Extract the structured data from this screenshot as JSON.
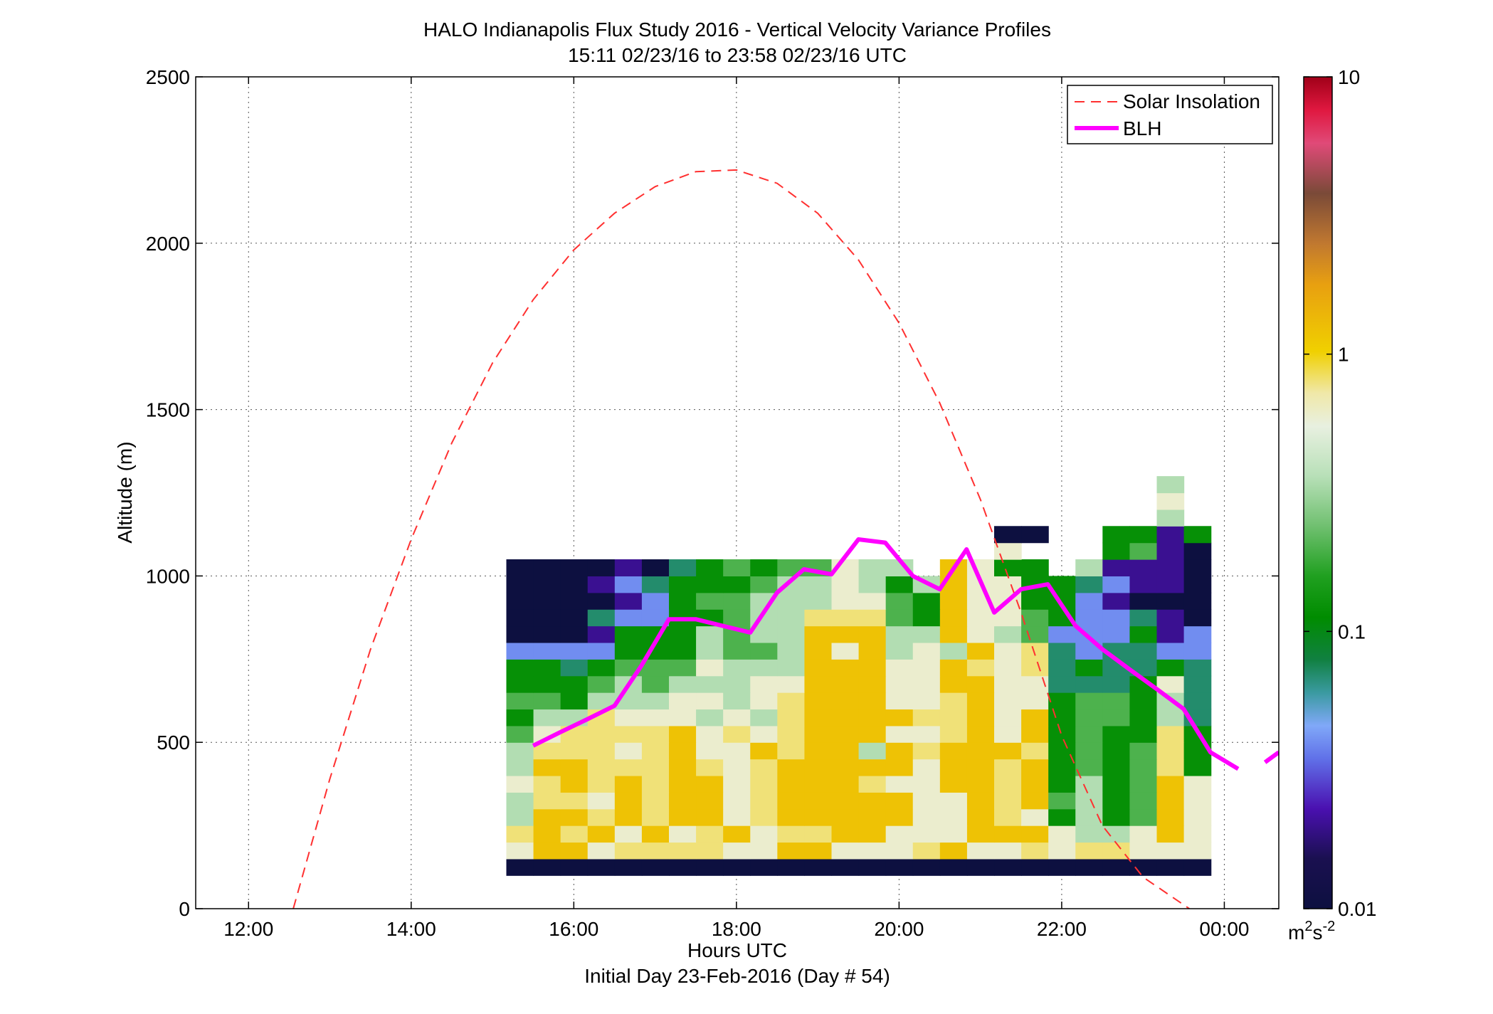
{
  "chart_data": {
    "type": "heatmap",
    "title": "HALO Indianapolis Flux Study 2016 - Vertical Velocity Variance Profiles",
    "subtitle": "15:11 02/23/16 to 23:58 02/23/16  UTC",
    "xlabel": "Hours UTC",
    "footer": "Initial Day 23-Feb-2016 (Day # 54)",
    "ylabel": "Altitude (m)",
    "xlim": [
      11.35,
      24.67
    ],
    "ylim": [
      0,
      2500
    ],
    "grid": true,
    "x_ticks": [
      {
        "value": 12,
        "label": "12:00"
      },
      {
        "value": 14,
        "label": "14:00"
      },
      {
        "value": 16,
        "label": "16:00"
      },
      {
        "value": 18,
        "label": "18:00"
      },
      {
        "value": 20,
        "label": "20:00"
      },
      {
        "value": 22,
        "label": "22:00"
      },
      {
        "value": 24,
        "label": "00:00"
      }
    ],
    "y_ticks": [
      {
        "value": 0,
        "label": "0"
      },
      {
        "value": 500,
        "label": "500"
      },
      {
        "value": 1000,
        "label": "1000"
      },
      {
        "value": 1500,
        "label": "1500"
      },
      {
        "value": 2000,
        "label": "2000"
      },
      {
        "value": 2500,
        "label": "2500"
      }
    ],
    "colorbar": {
      "scale": "log",
      "range": [
        0.01,
        10
      ],
      "ticks": [
        {
          "value": 0.01,
          "label": "0.01"
        },
        {
          "value": 0.1,
          "label": "0.1"
        },
        {
          "value": 1,
          "label": "1"
        },
        {
          "value": 10,
          "label": "10"
        }
      ],
      "unit_base": "m",
      "unit_exp1": "2",
      "unit_mid": "s",
      "unit_exp2": "-2"
    },
    "legend": {
      "placement": "top-right",
      "entries": [
        {
          "label": "Solar Insolation",
          "style": "dashed",
          "color": "#ff3030"
        },
        {
          "label": "BLH",
          "style": "solid",
          "color": "#ff00ff"
        }
      ]
    },
    "heatmap": {
      "x_start": 15.17,
      "x_step": 0.3333,
      "y_start": 100,
      "y_step": 50,
      "code_scale": {
        "0": 0.01,
        "1": 0.02,
        "2": 0.04,
        "3": 0.07,
        "4": 0.12,
        "5": 0.2,
        "6": 0.35,
        "7": 0.6,
        "8": 0.8,
        "9": 1.2
      },
      "grid_codes": [
        "00000000000000000000000000",
        "79978888779977789778788777",
        "89897978978899777999766797",
        "69989899789999977987464597",
        "68879899789999977989564597",
        "78989899789998779989464597",
        "69988898789999979989454584",
        "68887897798996989998454584",
        "57888897878999778979454484",
        "46687776768999988979455463",
        "55466677678999778977455463",
        "44456566677999779977333473",
        "44345557666999779878343343",
        "22224446556979676978323322",
        "00014446566999669765222412",
        "00032244566888549775422310",
        "00001245566677549774421000",
        "00012344456676469774432110",
        "000010345455766 9744 61110",
        "                  7   4510",
        "                  00  4414",
        "                        6",
        "                        7",
        "                        6"
      ]
    },
    "solar_insolation": {
      "x": [
        12.55,
        13.0,
        13.5,
        14.0,
        14.5,
        15.0,
        15.5,
        16.0,
        16.5,
        17.0,
        17.5,
        18.0,
        18.5,
        19.0,
        19.5,
        20.0,
        20.5,
        21.0,
        21.5,
        22.0,
        22.5,
        23.0,
        23.57
      ],
      "y": [
        0,
        390,
        780,
        1110,
        1400,
        1640,
        1830,
        1980,
        2090,
        2170,
        2215,
        2220,
        2180,
        2090,
        1950,
        1760,
        1520,
        1230,
        890,
        520,
        250,
        95,
        0
      ]
    },
    "blh": {
      "segments": [
        {
          "x": [
            15.5,
            15.83,
            16.17,
            16.5,
            16.83,
            17.17,
            17.5,
            17.83,
            18.17,
            18.5,
            18.83,
            19.17,
            19.5,
            19.83,
            20.17,
            20.5,
            20.83,
            21.17,
            21.5,
            21.83,
            22.17,
            22.5,
            22.83,
            23.17,
            23.5,
            23.83,
            24.17
          ],
          "y": [
            490,
            530,
            570,
            610,
            730,
            870,
            870,
            850,
            830,
            950,
            1020,
            1005,
            1110,
            1100,
            1000,
            960,
            1080,
            890,
            960,
            975,
            850,
            780,
            720,
            660,
            600,
            470,
            420
          ]
        },
        {
          "x": [
            24.5,
            24.67
          ],
          "y": [
            440,
            470
          ]
        }
      ]
    }
  }
}
